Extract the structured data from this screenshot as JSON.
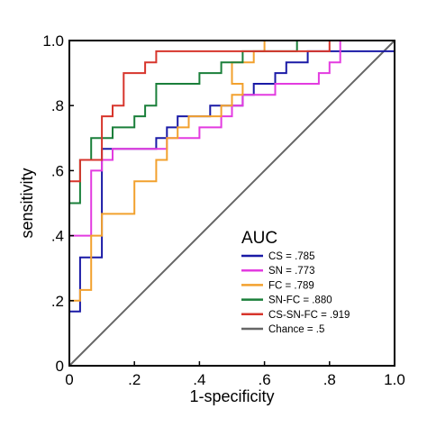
{
  "chart_data": {
    "type": "line",
    "xlabel": "1-specificity",
    "ylabel": "sensitivity",
    "xlim": [
      0,
      1
    ],
    "ylim": [
      0,
      1
    ],
    "x_ticks": [
      {
        "value": 0,
        "label": "0"
      },
      {
        "value": 0.2,
        "label": ".2"
      },
      {
        "value": 0.4,
        "label": ".4"
      },
      {
        "value": 0.6,
        "label": ".6"
      },
      {
        "value": 0.8,
        "label": ".8"
      },
      {
        "value": 1.0,
        "label": "1.0"
      }
    ],
    "y_ticks": [
      {
        "value": 0,
        "label": "0"
      },
      {
        "value": 0.2,
        "label": ".2"
      },
      {
        "value": 0.4,
        "label": ".4"
      },
      {
        "value": 0.6,
        "label": ".6"
      },
      {
        "value": 0.8,
        "label": ".8"
      },
      {
        "value": 1.0,
        "label": "1.0"
      }
    ],
    "grid": false,
    "legend": {
      "title": "AUC",
      "position": "bottom-right"
    },
    "series": [
      {
        "name": "CS = .785",
        "color": "#1a1aa6",
        "points": [
          [
            0,
            0
          ],
          [
            0,
            0.167
          ],
          [
            0.033,
            0.167
          ],
          [
            0.033,
            0.333
          ],
          [
            0.1,
            0.333
          ],
          [
            0.1,
            0.667
          ],
          [
            0.267,
            0.667
          ],
          [
            0.267,
            0.7
          ],
          [
            0.3,
            0.7
          ],
          [
            0.3,
            0.733
          ],
          [
            0.333,
            0.733
          ],
          [
            0.333,
            0.767
          ],
          [
            0.433,
            0.767
          ],
          [
            0.433,
            0.8
          ],
          [
            0.533,
            0.8
          ],
          [
            0.533,
            0.833
          ],
          [
            0.567,
            0.833
          ],
          [
            0.567,
            0.867
          ],
          [
            0.633,
            0.867
          ],
          [
            0.633,
            0.9
          ],
          [
            0.667,
            0.9
          ],
          [
            0.667,
            0.933
          ],
          [
            0.733,
            0.933
          ],
          [
            0.733,
            0.967
          ],
          [
            1,
            0.967
          ],
          [
            1,
            1
          ]
        ]
      },
      {
        "name": "SN = .773",
        "color": "#e33be0",
        "points": [
          [
            0,
            0
          ],
          [
            0,
            0.4
          ],
          [
            0.067,
            0.4
          ],
          [
            0.067,
            0.6
          ],
          [
            0.1,
            0.6
          ],
          [
            0.1,
            0.633
          ],
          [
            0.133,
            0.633
          ],
          [
            0.133,
            0.667
          ],
          [
            0.3,
            0.667
          ],
          [
            0.3,
            0.7
          ],
          [
            0.4,
            0.7
          ],
          [
            0.4,
            0.733
          ],
          [
            0.467,
            0.733
          ],
          [
            0.467,
            0.767
          ],
          [
            0.5,
            0.767
          ],
          [
            0.5,
            0.8
          ],
          [
            0.533,
            0.8
          ],
          [
            0.533,
            0.833
          ],
          [
            0.633,
            0.833
          ],
          [
            0.633,
            0.867
          ],
          [
            0.767,
            0.867
          ],
          [
            0.767,
            0.9
          ],
          [
            0.8,
            0.9
          ],
          [
            0.8,
            0.933
          ],
          [
            0.833,
            0.933
          ],
          [
            0.833,
            1
          ],
          [
            1,
            1
          ]
        ]
      },
      {
        "name": "FC = .789",
        "color": "#f2a12e",
        "points": [
          [
            0,
            0
          ],
          [
            0,
            0.2
          ],
          [
            0.033,
            0.2
          ],
          [
            0.033,
            0.233
          ],
          [
            0.067,
            0.233
          ],
          [
            0.067,
            0.4
          ],
          [
            0.1,
            0.4
          ],
          [
            0.1,
            0.467
          ],
          [
            0.2,
            0.467
          ],
          [
            0.2,
            0.567
          ],
          [
            0.267,
            0.567
          ],
          [
            0.267,
            0.633
          ],
          [
            0.3,
            0.633
          ],
          [
            0.3,
            0.7
          ],
          [
            0.333,
            0.7
          ],
          [
            0.333,
            0.733
          ],
          [
            0.367,
            0.733
          ],
          [
            0.367,
            0.767
          ],
          [
            0.467,
            0.767
          ],
          [
            0.467,
            0.8
          ],
          [
            0.5,
            0.8
          ],
          [
            0.5,
            0.833
          ],
          [
            0.533,
            0.833
          ],
          [
            0.533,
            0.867
          ],
          [
            0.5,
            0.867
          ],
          [
            0.5,
            0.933
          ],
          [
            0.567,
            0.933
          ],
          [
            0.567,
            0.967
          ],
          [
            0.6,
            0.967
          ],
          [
            0.6,
            1
          ],
          [
            1,
            1
          ]
        ]
      },
      {
        "name": "SN-FC = .880",
        "color": "#1a7f3a",
        "points": [
          [
            0,
            0
          ],
          [
            0,
            0.5
          ],
          [
            0.033,
            0.5
          ],
          [
            0.033,
            0.633
          ],
          [
            0.067,
            0.633
          ],
          [
            0.067,
            0.7
          ],
          [
            0.133,
            0.7
          ],
          [
            0.133,
            0.733
          ],
          [
            0.2,
            0.733
          ],
          [
            0.2,
            0.767
          ],
          [
            0.233,
            0.767
          ],
          [
            0.233,
            0.8
          ],
          [
            0.267,
            0.8
          ],
          [
            0.267,
            0.833
          ],
          [
            0.267,
            0.867
          ],
          [
            0.4,
            0.867
          ],
          [
            0.4,
            0.9
          ],
          [
            0.467,
            0.9
          ],
          [
            0.467,
            0.933
          ],
          [
            0.533,
            0.933
          ],
          [
            0.533,
            0.967
          ],
          [
            0.7,
            0.967
          ],
          [
            0.7,
            1
          ],
          [
            1,
            1
          ]
        ]
      },
      {
        "name": "CS-SN-FC = .919",
        "color": "#d7352c",
        "points": [
          [
            0,
            0
          ],
          [
            0,
            0.567
          ],
          [
            0.033,
            0.567
          ],
          [
            0.033,
            0.633
          ],
          [
            0.1,
            0.633
          ],
          [
            0.1,
            0.767
          ],
          [
            0.133,
            0.767
          ],
          [
            0.133,
            0.8
          ],
          [
            0.167,
            0.8
          ],
          [
            0.167,
            0.833
          ],
          [
            0.167,
            0.9
          ],
          [
            0.233,
            0.9
          ],
          [
            0.233,
            0.933
          ],
          [
            0.267,
            0.933
          ],
          [
            0.267,
            0.967
          ],
          [
            0.8,
            0.967
          ],
          [
            0.8,
            1
          ],
          [
            1,
            1
          ]
        ]
      },
      {
        "name": "Chance = .5",
        "color": "#666666",
        "points": [
          [
            0,
            0
          ],
          [
            1,
            1
          ]
        ]
      }
    ]
  }
}
